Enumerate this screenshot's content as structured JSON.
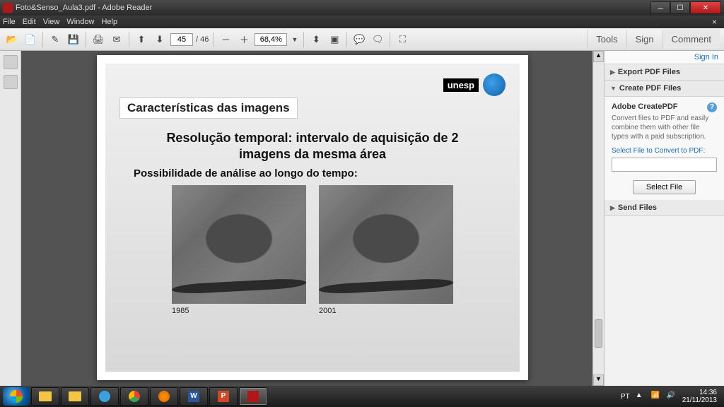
{
  "window": {
    "title": "Foto&Senso_Aula3.pdf - Adobe Reader"
  },
  "menu": {
    "items": [
      "File",
      "Edit",
      "View",
      "Window",
      "Help"
    ]
  },
  "toolbar": {
    "page_current": "45",
    "page_total": "/ 46",
    "zoom": "68,4%",
    "panels": {
      "tools": "Tools",
      "sign": "Sign",
      "comment": "Comment"
    }
  },
  "document": {
    "logo_text": "unesp",
    "slide_title": "Características das imagens",
    "heading": "Resolução temporal: intervalo de aquisição de 2 imagens da mesma área",
    "subheading": "Possibilidade de análise ao longo do tempo:",
    "year_left": "1985",
    "year_right": "2001"
  },
  "right_panel": {
    "sign_in": "Sign In",
    "export": "Export PDF Files",
    "create": "Create PDF Files",
    "create_hdr": "Adobe CreatePDF",
    "create_desc": "Convert files to PDF and easily combine them with other file types with a paid subscription.",
    "select_label": "Select File to Convert to PDF:",
    "select_btn": "Select File",
    "send": "Send Files"
  },
  "taskbar": {
    "lang": "PT",
    "time": "14:36",
    "date": "21/11/2013"
  },
  "colors": {
    "doc_bg": "#535353",
    "accent_red": "#b01818",
    "link_blue": "#1a6fb0"
  }
}
